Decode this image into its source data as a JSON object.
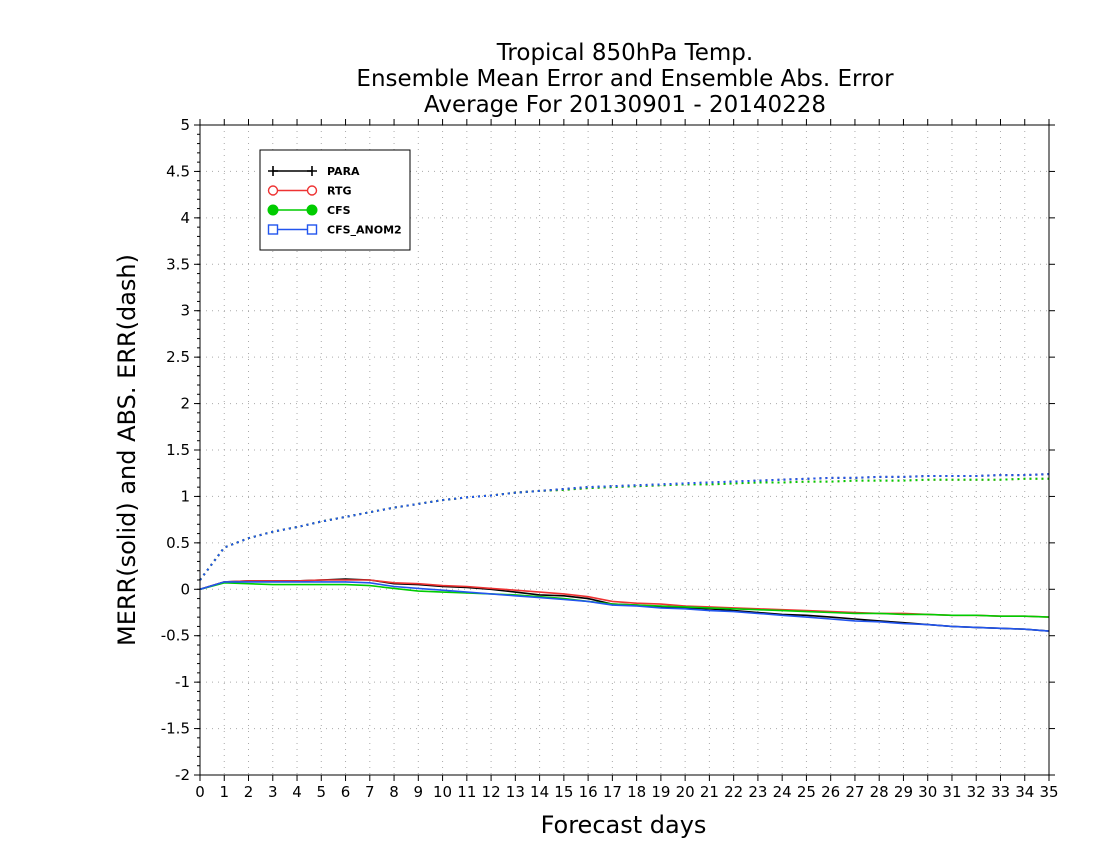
{
  "chart_data": {
    "type": "line",
    "title": [
      "Tropical 850hPa Temp.",
      "Ensemble Mean Error and Ensemble Abs. Error",
      "Average For 20130901 - 20140228"
    ],
    "xlabel": "Forecast days",
    "ylabel": "MERR(solid) and ABS. ERR(dash)",
    "xlim": [
      0,
      35
    ],
    "ylim": [
      -2,
      5
    ],
    "xticks": [
      0,
      1,
      2,
      3,
      4,
      5,
      6,
      7,
      8,
      9,
      10,
      11,
      12,
      13,
      14,
      15,
      16,
      17,
      18,
      19,
      20,
      21,
      22,
      23,
      24,
      25,
      26,
      27,
      28,
      29,
      30,
      31,
      32,
      33,
      34,
      35
    ],
    "yticks": [
      -2,
      -1.5,
      -1,
      -0.5,
      0,
      0.5,
      1,
      1.5,
      2,
      2.5,
      3,
      3.5,
      4,
      4.5,
      5
    ],
    "ytick_labels": [
      "-2",
      "-1.5",
      "-1",
      "-0.5",
      "0",
      "0.5",
      "1",
      "1.5",
      "2",
      "2.5",
      "3",
      "3.5",
      "4",
      "4.5",
      "5"
    ],
    "grid": true,
    "legend_position": "top-left",
    "x": [
      0,
      1,
      2,
      3,
      4,
      5,
      6,
      7,
      8,
      9,
      10,
      11,
      12,
      13,
      14,
      15,
      16,
      17,
      18,
      19,
      20,
      21,
      22,
      23,
      24,
      25,
      26,
      27,
      28,
      29,
      30,
      31,
      32,
      33,
      34,
      35
    ],
    "series": [
      {
        "name": "PARA",
        "color": "#000000",
        "marker": "plus",
        "merr": [
          0,
          0.08,
          0.09,
          0.09,
          0.09,
          0.1,
          0.11,
          0.1,
          0.06,
          0.05,
          0.03,
          0.02,
          0.0,
          -0.03,
          -0.06,
          -0.07,
          -0.1,
          -0.16,
          -0.17,
          -0.19,
          -0.2,
          -0.21,
          -0.23,
          -0.25,
          -0.27,
          -0.28,
          -0.3,
          -0.32,
          -0.34,
          -0.36,
          -0.38,
          -0.4,
          -0.41,
          -0.42,
          -0.43,
          -0.45
        ],
        "abs_err": [
          0.1,
          0.45,
          0.55,
          0.62,
          0.67,
          0.73,
          0.78,
          0.83,
          0.88,
          0.92,
          0.96,
          0.99,
          1.01,
          1.04,
          1.06,
          1.08,
          1.1,
          1.11,
          1.12,
          1.13,
          1.14,
          1.15,
          1.16,
          1.17,
          1.18,
          1.19,
          1.2,
          1.2,
          1.21,
          1.21,
          1.22,
          1.22,
          1.22,
          1.23,
          1.23,
          1.24
        ]
      },
      {
        "name": "RTG",
        "color": "#ee3333",
        "marker": "circle-open",
        "merr": [
          0,
          0.08,
          0.09,
          0.09,
          0.09,
          0.1,
          0.1,
          0.1,
          0.07,
          0.06,
          0.04,
          0.03,
          0.01,
          -0.01,
          -0.03,
          -0.05,
          -0.08,
          -0.13,
          -0.15,
          -0.16,
          -0.18,
          -0.19,
          -0.2,
          -0.21,
          -0.22,
          -0.23,
          -0.24,
          -0.25,
          -0.26,
          -0.26,
          -0.27,
          -0.28,
          -0.28,
          -0.29,
          -0.29,
          -0.3
        ],
        "abs_err": [
          0.1,
          0.45,
          0.55,
          0.62,
          0.67,
          0.73,
          0.78,
          0.83,
          0.88,
          0.92,
          0.96,
          0.99,
          1.01,
          1.04,
          1.06,
          1.07,
          1.09,
          1.1,
          1.11,
          1.12,
          1.13,
          1.13,
          1.14,
          1.15,
          1.15,
          1.16,
          1.16,
          1.17,
          1.17,
          1.17,
          1.18,
          1.18,
          1.18,
          1.18,
          1.19,
          1.19
        ]
      },
      {
        "name": "CFS",
        "color": "#00cc00",
        "marker": "circle-filled",
        "merr": [
          0,
          0.07,
          0.06,
          0.05,
          0.05,
          0.05,
          0.05,
          0.04,
          0.01,
          -0.02,
          -0.03,
          -0.04,
          -0.05,
          -0.06,
          -0.08,
          -0.1,
          -0.13,
          -0.16,
          -0.17,
          -0.18,
          -0.19,
          -0.2,
          -0.21,
          -0.22,
          -0.23,
          -0.24,
          -0.25,
          -0.26,
          -0.26,
          -0.27,
          -0.27,
          -0.28,
          -0.28,
          -0.29,
          -0.29,
          -0.3
        ],
        "abs_err": [
          0.1,
          0.45,
          0.55,
          0.62,
          0.67,
          0.73,
          0.78,
          0.83,
          0.88,
          0.92,
          0.96,
          0.99,
          1.01,
          1.04,
          1.06,
          1.07,
          1.09,
          1.1,
          1.11,
          1.12,
          1.13,
          1.13,
          1.14,
          1.15,
          1.15,
          1.16,
          1.16,
          1.17,
          1.17,
          1.17,
          1.18,
          1.18,
          1.18,
          1.18,
          1.19,
          1.19
        ]
      },
      {
        "name": "CFS_ANOM2",
        "color": "#2255ee",
        "marker": "square-open",
        "merr": [
          0,
          0.08,
          0.08,
          0.08,
          0.08,
          0.08,
          0.08,
          0.07,
          0.03,
          0.01,
          -0.01,
          -0.03,
          -0.05,
          -0.07,
          -0.09,
          -0.11,
          -0.13,
          -0.17,
          -0.18,
          -0.2,
          -0.21,
          -0.23,
          -0.24,
          -0.26,
          -0.28,
          -0.3,
          -0.32,
          -0.34,
          -0.35,
          -0.37,
          -0.38,
          -0.4,
          -0.41,
          -0.42,
          -0.43,
          -0.45
        ],
        "abs_err": [
          0.1,
          0.45,
          0.55,
          0.62,
          0.67,
          0.73,
          0.78,
          0.83,
          0.88,
          0.92,
          0.96,
          0.99,
          1.01,
          1.04,
          1.06,
          1.08,
          1.1,
          1.11,
          1.12,
          1.13,
          1.14,
          1.15,
          1.16,
          1.17,
          1.18,
          1.19,
          1.2,
          1.2,
          1.21,
          1.21,
          1.22,
          1.22,
          1.22,
          1.23,
          1.23,
          1.24
        ]
      }
    ]
  }
}
